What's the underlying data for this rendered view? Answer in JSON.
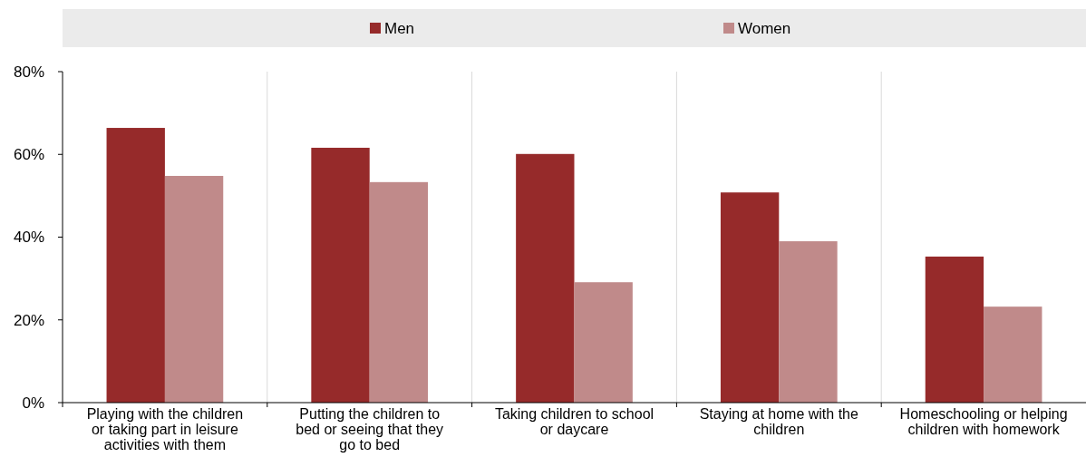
{
  "chart_data": {
    "type": "bar",
    "categories": [
      "Playing with the children or taking part in leisure activities with them",
      "Putting the children to bed or seeing that they go to bed",
      "Taking children to school or daycare",
      "Staying at home with the children",
      "Homeschooling or helping children with homework"
    ],
    "series": [
      {
        "name": "Men",
        "color": "#962a2a",
        "values": [
          66.4,
          61.6,
          60.1,
          50.8,
          35.3
        ]
      },
      {
        "name": "Women",
        "color": "#c08a8a",
        "values": [
          54.8,
          53.3,
          29.1,
          39.0,
          23.2
        ]
      }
    ],
    "ylim": [
      0,
      80
    ],
    "yticks": [
      {
        "value": 0,
        "label": "0%"
      },
      {
        "value": 20,
        "label": "20%"
      },
      {
        "value": 40,
        "label": "40%"
      },
      {
        "value": 60,
        "label": "60%"
      },
      {
        "value": 80,
        "label": "80%"
      }
    ],
    "grid": "x",
    "legend": "top"
  }
}
